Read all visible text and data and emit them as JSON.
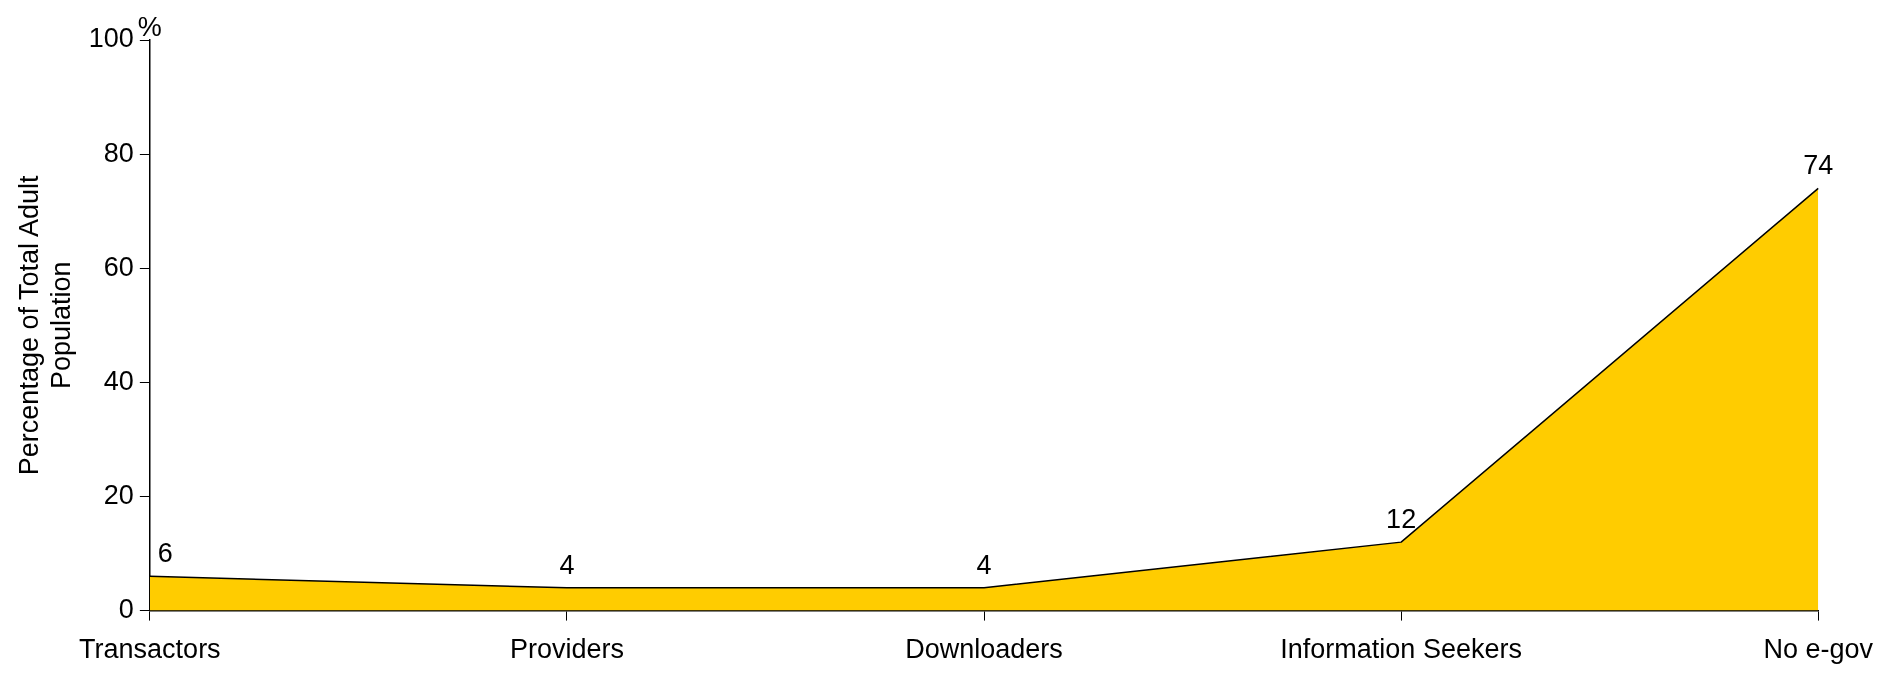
{
  "chart_data": {
    "type": "area",
    "ylabel": "Percentage of Total Adult Population",
    "categories": [
      "Transactors",
      "Providers",
      "Downloaders",
      "Information Seekers",
      "No e-gov"
    ],
    "series": [
      {
        "color": "#ffcc00",
        "values": [
          6,
          4,
          4,
          12,
          74
        ]
      }
    ],
    "ylim": [
      0,
      100
    ],
    "yticks": [
      0,
      20,
      40,
      60,
      80,
      100
    ],
    "grid": false,
    "legend": false,
    "data_labels": true,
    "marker": "none",
    "annotations": [
      "%"
    ]
  }
}
